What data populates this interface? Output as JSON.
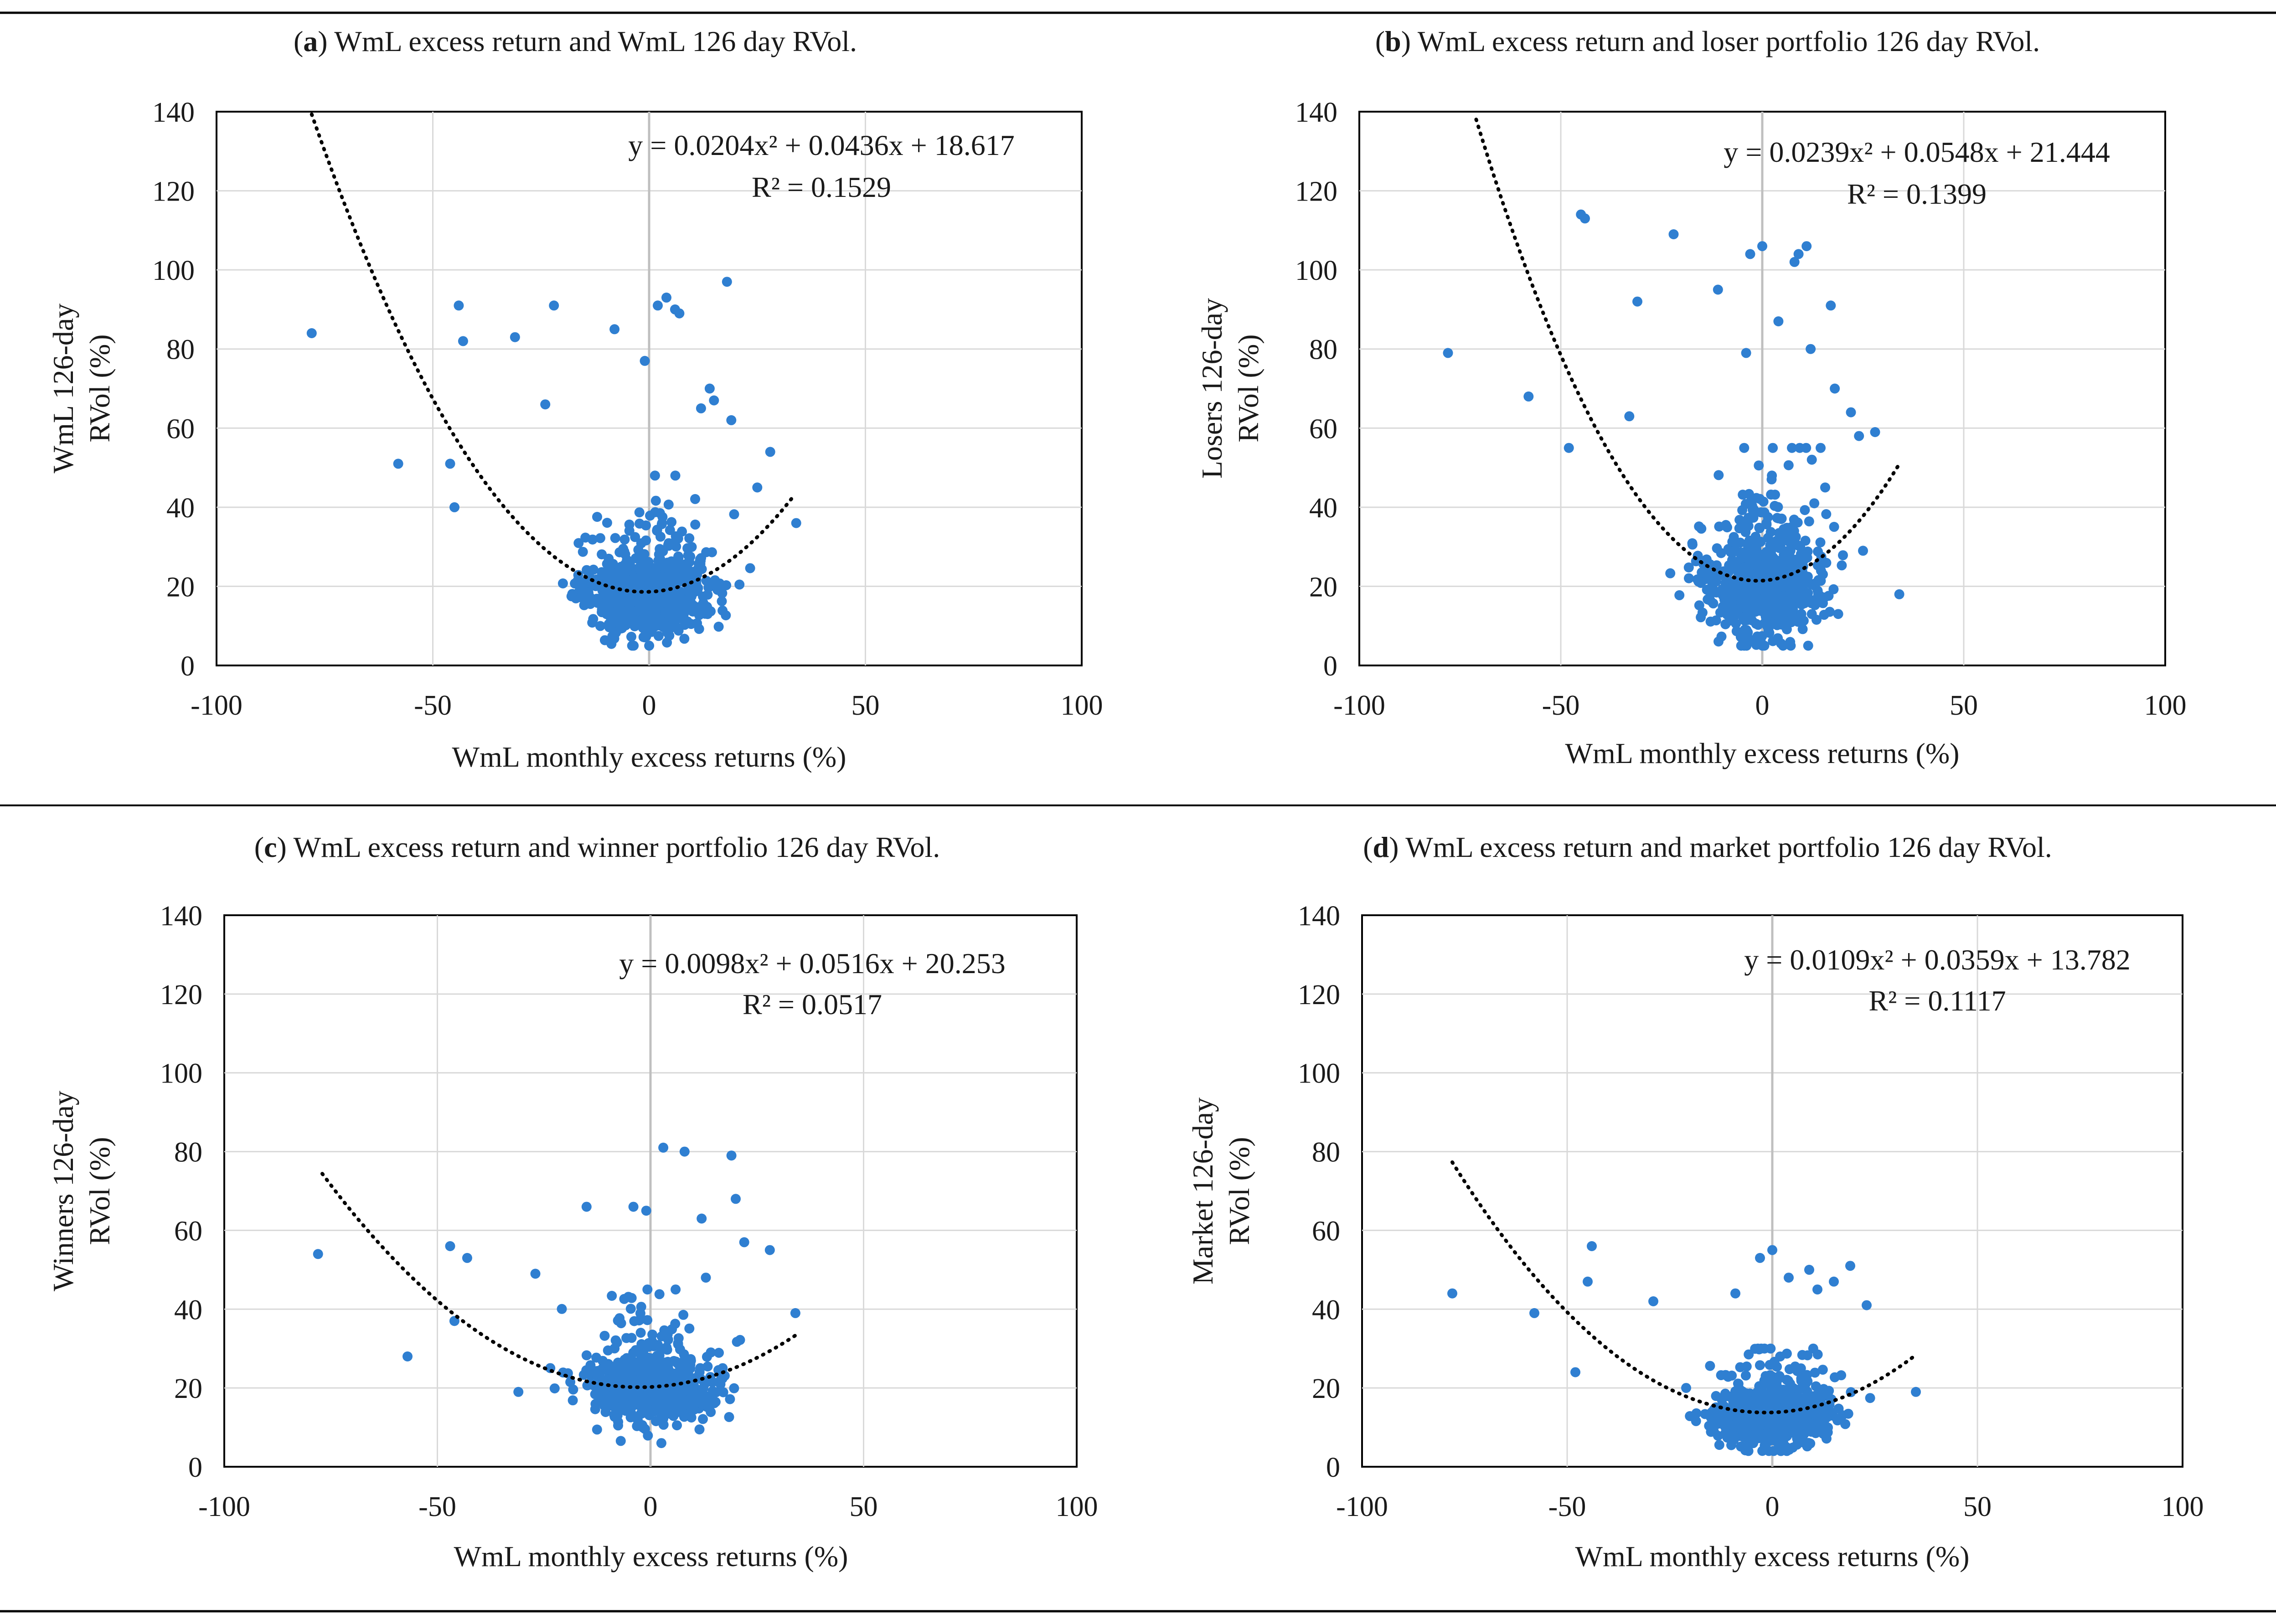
{
  "panels": [
    {
      "id": "a",
      "caption_letter": "a",
      "caption_text": ") WmL excess return and WmL 126 day RVol.",
      "chart_data": {
        "type": "scatter",
        "xlabel": "WmL monthly excess returns (%)",
        "ylabel": [
          "WmL 126-day",
          "RVol (%)"
        ],
        "xlim": [
          -100,
          100
        ],
        "ylim": [
          0,
          140
        ],
        "xticks": [
          "-100",
          "-50",
          "0",
          "50",
          "100"
        ],
        "yticks": [
          "0",
          "20",
          "40",
          "60",
          "80",
          "100",
          "120",
          "140"
        ],
        "grid": true,
        "equation": "y = 0.0204x² + 0.0436x + 18.617",
        "r2": "R² = 0.1529",
        "trend": {
          "a": 0.0204,
          "b": 0.0436,
          "c": 18.617,
          "x_range": [
            -78,
            33
          ]
        },
        "sample": {
          "seed": 11,
          "n": 720,
          "sx": 7,
          "c0": 16,
          "c1": 0.01,
          "k": 8,
          "cap": 48,
          "ymin": 5
        },
        "outliers": [
          [
            -78,
            84
          ],
          [
            -58,
            51
          ],
          [
            -46,
            51
          ],
          [
            -45,
            40
          ],
          [
            -44,
            91
          ],
          [
            -43,
            82
          ],
          [
            -31,
            83
          ],
          [
            -24,
            66
          ],
          [
            -22,
            91
          ],
          [
            -8,
            85
          ],
          [
            -1,
            77
          ],
          [
            2,
            91
          ],
          [
            4,
            93
          ],
          [
            6,
            90
          ],
          [
            7,
            89
          ],
          [
            12,
            65
          ],
          [
            14,
            70
          ],
          [
            15,
            67
          ],
          [
            18,
            97
          ],
          [
            19,
            62
          ],
          [
            25,
            45
          ],
          [
            28,
            54
          ],
          [
            34,
            36
          ]
        ]
      }
    },
    {
      "id": "b",
      "caption_letter": "b",
      "caption_text": ") WmL excess return and loser portfolio 126 day RVol.",
      "chart_data": {
        "type": "scatter",
        "xlabel": "WmL monthly excess returns (%)",
        "ylabel": [
          "Losers 126-day",
          "RVol (%)"
        ],
        "xlim": [
          -100,
          100
        ],
        "ylim": [
          0,
          140
        ],
        "xticks": [
          "-100",
          "-50",
          "0",
          "50",
          "100"
        ],
        "yticks": [
          "0",
          "20",
          "40",
          "60",
          "80",
          "100",
          "120",
          "140"
        ],
        "grid": true,
        "equation": "y = 0.0239x² + 0.0548x + 21.444",
        "r2": "R² = 0.1399",
        "trend": {
          "a": 0.0239,
          "b": 0.0548,
          "c": 21.444,
          "x_range": [
            -71,
            34
          ]
        },
        "sample": {
          "seed": 23,
          "n": 720,
          "sx": 7,
          "c0": 18,
          "c1": 0.01,
          "k": 10,
          "cap": 55,
          "ymin": 5
        },
        "outliers": [
          [
            -78,
            79
          ],
          [
            -58,
            68
          ],
          [
            -48,
            55
          ],
          [
            -45,
            114
          ],
          [
            -44,
            113
          ],
          [
            -33,
            63
          ],
          [
            -31,
            92
          ],
          [
            -22,
            109
          ],
          [
            -11,
            95
          ],
          [
            -4,
            79
          ],
          [
            -3,
            104
          ],
          [
            0,
            106
          ],
          [
            4,
            87
          ],
          [
            8,
            102
          ],
          [
            9,
            104
          ],
          [
            11,
            106
          ],
          [
            12,
            80
          ],
          [
            17,
            91
          ],
          [
            18,
            70
          ],
          [
            22,
            64
          ],
          [
            24,
            58
          ],
          [
            25,
            29
          ],
          [
            28,
            59
          ],
          [
            34,
            18
          ]
        ]
      }
    },
    {
      "id": "c",
      "caption_letter": "c",
      "caption_text": ") WmL excess return and winner portfolio 126 day RVol.",
      "chart_data": {
        "type": "scatter",
        "xlabel": "WmL monthly excess returns (%)",
        "ylabel": [
          "Winners 126-day",
          "RVol (%)"
        ],
        "xlim": [
          -100,
          100
        ],
        "ylim": [
          0,
          140
        ],
        "xticks": [
          "-100",
          "-50",
          "0",
          "50",
          "100"
        ],
        "yticks": [
          "0",
          "20",
          "40",
          "60",
          "80",
          "100",
          "120",
          "140"
        ],
        "grid": true,
        "equation": "y = 0.0098x² + 0.0516x + 20.253",
        "r2": "R² = 0.0517",
        "trend": {
          "a": 0.0098,
          "b": 0.0516,
          "c": 20.253,
          "x_range": [
            -77,
            34
          ]
        },
        "sample": {
          "seed": 37,
          "n": 720,
          "sx": 7,
          "c0": 19,
          "c1": 0.006,
          "k": 7,
          "cap": 45,
          "ymin": 6
        },
        "outliers": [
          [
            -78,
            54
          ],
          [
            -57,
            28
          ],
          [
            -47,
            56
          ],
          [
            -46,
            37
          ],
          [
            -43,
            53
          ],
          [
            -31,
            19
          ],
          [
            -27,
            49
          ],
          [
            -15,
            66
          ],
          [
            -4,
            66
          ],
          [
            -1,
            65
          ],
          [
            3,
            81
          ],
          [
            8,
            80
          ],
          [
            12,
            63
          ],
          [
            13,
            48
          ],
          [
            19,
            79
          ],
          [
            20,
            68
          ],
          [
            22,
            57
          ],
          [
            28,
            55
          ],
          [
            34,
            39
          ]
        ]
      }
    },
    {
      "id": "d",
      "caption_letter": "d",
      "caption_text": ") WmL excess return and market portfolio 126 day RVol.",
      "chart_data": {
        "type": "scatter",
        "xlabel": "WmL monthly excess returns (%)",
        "ylabel": [
          "Market 126-day",
          "RVol (%)"
        ],
        "xlim": [
          -100,
          100
        ],
        "ylim": [
          0,
          140
        ],
        "xticks": [
          "-100",
          "-50",
          "0",
          "50",
          "100"
        ],
        "yticks": [
          "0",
          "20",
          "40",
          "60",
          "80",
          "100",
          "120",
          "140"
        ],
        "grid": true,
        "equation": "y = 0.0109x² + 0.0359x + 13.782",
        "r2": "R² = 0.1117",
        "trend": {
          "a": 0.0109,
          "b": 0.0359,
          "c": 13.782,
          "x_range": [
            -78,
            35
          ]
        },
        "sample": {
          "seed": 53,
          "n": 720,
          "sx": 7,
          "c0": 12,
          "c1": 0.004,
          "k": 6,
          "cap": 30,
          "ymin": 4
        },
        "outliers": [
          [
            -78,
            44
          ],
          [
            -58,
            39
          ],
          [
            -48,
            24
          ],
          [
            -45,
            47
          ],
          [
            -44,
            56
          ],
          [
            -29,
            42
          ],
          [
            -21,
            20
          ],
          [
            -9,
            44
          ],
          [
            -3,
            53
          ],
          [
            0,
            55
          ],
          [
            4,
            48
          ],
          [
            9,
            50
          ],
          [
            11,
            45
          ],
          [
            15,
            47
          ],
          [
            19,
            51
          ],
          [
            23,
            41
          ],
          [
            35,
            19
          ]
        ]
      }
    }
  ],
  "style": {
    "dot_color": "#2f7fd1",
    "grid_color": "#d9d9d9",
    "axis_color": "#000000",
    "trend_color": "#000000",
    "zero_line_color": "#bfbfbf"
  }
}
